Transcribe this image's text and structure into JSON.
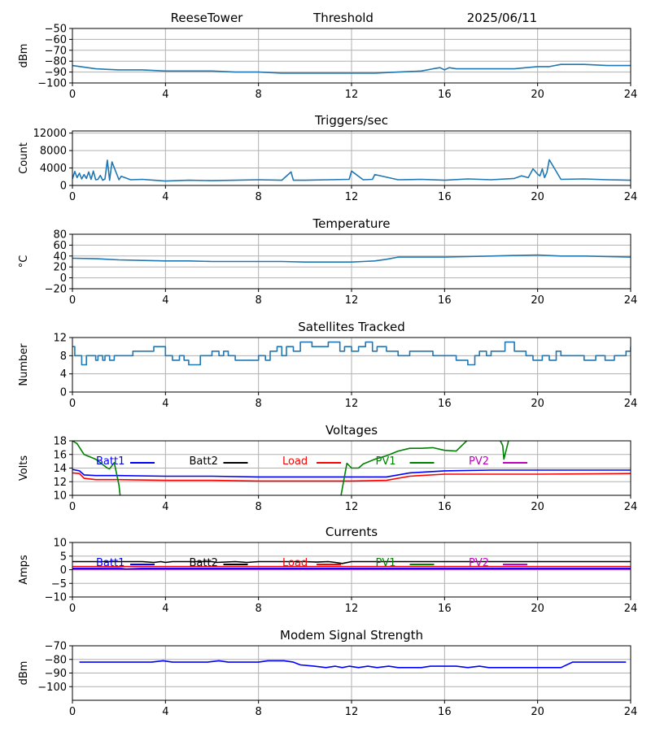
{
  "header": {
    "station": "ReeseTower",
    "label": "Threshold",
    "date": "2025/06/11"
  },
  "colors": {
    "series_default": "#1f77b4",
    "batt1": "#0000ff",
    "batt2": "#000000",
    "load": "#ff0000",
    "pv1": "#008000",
    "pv2": "#bf00bf",
    "grid": "#b0b0b0"
  },
  "chart_data": [
    {
      "type": "line",
      "title": "",
      "ylabel": "dBm",
      "xlim": [
        0,
        24
      ],
      "ylim": [
        -100,
        -50
      ],
      "xticks": [
        "0",
        "4",
        "8",
        "12",
        "16",
        "20",
        "24"
      ],
      "yticks": [
        "−50",
        "−60",
        "−70",
        "−80",
        "−90",
        "−100"
      ],
      "yticks_values": [
        -50,
        -60,
        -70,
        -80,
        -90,
        -100
      ],
      "series": [
        {
          "color": "#1f77b4",
          "x": [
            0,
            1,
            2,
            3,
            4,
            5,
            6,
            7,
            8,
            9,
            10,
            11,
            12,
            13,
            14,
            15,
            15.5,
            15.8,
            16,
            16.2,
            16.5,
            17,
            18,
            19,
            19.5,
            20,
            20.5,
            21,
            22,
            23,
            24
          ],
          "y": [
            -84,
            -87,
            -88,
            -88,
            -89,
            -89,
            -89,
            -90,
            -90,
            -91,
            -91,
            -91,
            -91,
            -91,
            -90,
            -89,
            -87,
            -86,
            -88,
            -86,
            -87,
            -87,
            -87,
            -87,
            -86,
            -85,
            -85,
            -83,
            -83,
            -84,
            -84
          ]
        }
      ]
    },
    {
      "type": "line",
      "title": "Triggers/sec",
      "ylabel": "Count",
      "xlim": [
        0,
        24
      ],
      "ylim": [
        0,
        12500
      ],
      "xticks": [
        "0",
        "4",
        "8",
        "12",
        "16",
        "20",
        "24"
      ],
      "yticks": [
        "0",
        "4000",
        "8000",
        "12000"
      ],
      "yticks_values": [
        0,
        4000,
        8000,
        12000
      ],
      "series": [
        {
          "color": "#1f77b4",
          "x": [
            0,
            0.1,
            0.2,
            0.3,
            0.4,
            0.5,
            0.6,
            0.7,
            0.8,
            0.9,
            1.0,
            1.1,
            1.2,
            1.3,
            1.4,
            1.5,
            1.6,
            1.7,
            2.0,
            2.1,
            2.5,
            3,
            3.5,
            4,
            5,
            6,
            7,
            8,
            9,
            9.4,
            9.5,
            10,
            11,
            11.9,
            12.0,
            12.5,
            12.9,
            13,
            14,
            15,
            16,
            17,
            18,
            19,
            19.3,
            19.6,
            19.8,
            20,
            20.1,
            20.2,
            20.3,
            20.4,
            20.5,
            21,
            22,
            23,
            24
          ],
          "y": [
            1500,
            3200,
            1800,
            2800,
            1500,
            2500,
            1600,
            3100,
            1400,
            3300,
            1300,
            1400,
            2300,
            1200,
            1500,
            5800,
            1200,
            5400,
            1300,
            2100,
            1300,
            1400,
            1200,
            1000,
            1200,
            1100,
            1200,
            1300,
            1200,
            3100,
            1200,
            1200,
            1300,
            1400,
            3300,
            1300,
            1400,
            2500,
            1300,
            1400,
            1200,
            1500,
            1300,
            1600,
            2200,
            1800,
            3800,
            2600,
            2200,
            3800,
            1800,
            3000,
            5900,
            1400,
            1500,
            1300,
            1200
          ]
        }
      ]
    },
    {
      "type": "line",
      "title": "Temperature",
      "ylabel": "°C",
      "xlim": [
        0,
        24
      ],
      "ylim": [
        -20,
        80
      ],
      "xticks": [
        "0",
        "4",
        "8",
        "12",
        "16",
        "20",
        "24"
      ],
      "yticks": [
        "80",
        "60",
        "40",
        "20",
        "0",
        "−20"
      ],
      "yticks_values": [
        80,
        60,
        40,
        20,
        0,
        -20
      ],
      "series": [
        {
          "color": "#1f77b4",
          "x": [
            0,
            1,
            2,
            3,
            4,
            5,
            6,
            7,
            8,
            9,
            10,
            11,
            12,
            12.5,
            13,
            13.5,
            14,
            15,
            16,
            17,
            18,
            19,
            20,
            21,
            22,
            23,
            24
          ],
          "y": [
            36,
            35,
            33,
            32,
            31,
            31,
            30,
            30,
            30,
            30,
            29,
            29,
            29,
            30,
            31,
            34,
            38,
            38,
            38,
            39,
            40,
            41,
            42,
            40,
            40,
            39,
            38
          ]
        }
      ]
    },
    {
      "type": "line",
      "title": "Satellites Tracked",
      "ylabel": "Number",
      "xlim": [
        0,
        24
      ],
      "ylim": [
        0,
        12
      ],
      "xticks": [
        "0",
        "4",
        "8",
        "12",
        "16",
        "20",
        "24"
      ],
      "yticks": [
        "0",
        "4",
        "8",
        "12"
      ],
      "yticks_values": [
        0,
        4,
        8,
        12
      ],
      "series": [
        {
          "color": "#1f77b4",
          "step": true,
          "x": [
            0,
            0.1,
            0.3,
            0.4,
            0.6,
            0.8,
            1.0,
            1.1,
            1.3,
            1.4,
            1.6,
            1.8,
            2.0,
            2.6,
            2.7,
            3.0,
            3.5,
            4.0,
            4.3,
            4.6,
            4.8,
            5.0,
            5.5,
            6.0,
            6.3,
            6.5,
            6.7,
            7.0,
            7.5,
            8.0,
            8.3,
            8.5,
            8.8,
            9.0,
            9.2,
            9.5,
            9.8,
            10.3,
            11.0,
            11.5,
            11.7,
            12.0,
            12.3,
            12.6,
            12.9,
            13.1,
            13.5,
            14.0,
            14.5,
            15.0,
            15.5,
            16.0,
            16.5,
            17.0,
            17.3,
            17.5,
            17.8,
            18.0,
            18.3,
            18.6,
            19.0,
            19.5,
            19.8,
            20.2,
            20.5,
            20.8,
            21.0,
            21.5,
            22.0,
            22.5,
            22.9,
            23.3,
            23.8,
            24
          ],
          "y": [
            10,
            8,
            8,
            6,
            8,
            8,
            7,
            8,
            7,
            8,
            7,
            8,
            8,
            9,
            9,
            9,
            10,
            8,
            7,
            8,
            7,
            6,
            8,
            9,
            8,
            9,
            8,
            7,
            7,
            8,
            7,
            9,
            10,
            8,
            10,
            9,
            11,
            10,
            11,
            9,
            10,
            9,
            10,
            11,
            9,
            10,
            9,
            8,
            9,
            9,
            8,
            8,
            7,
            6,
            8,
            9,
            8,
            9,
            9,
            11,
            9,
            8,
            7,
            8,
            7,
            9,
            8,
            8,
            7,
            8,
            7,
            8,
            9,
            10
          ]
        }
      ]
    },
    {
      "type": "line",
      "title": "Voltages",
      "ylabel": "Volts",
      "xlim": [
        0,
        24
      ],
      "ylim": [
        10,
        18
      ],
      "xticks": [
        "0",
        "4",
        "8",
        "12",
        "16",
        "20",
        "24"
      ],
      "yticks": [
        "10",
        "12",
        "14",
        "16",
        "18"
      ],
      "yticks_values": [
        10,
        12,
        14,
        16,
        18
      ],
      "legend": [
        "Batt1",
        "Batt2",
        "Load",
        "PV1",
        "PV2"
      ],
      "series": [
        {
          "name": "Batt1",
          "color": "#0000ff",
          "x": [
            0,
            0.3,
            0.5,
            1,
            2,
            4,
            6,
            8,
            10,
            12,
            13.5,
            14.5,
            16,
            18,
            20,
            24
          ],
          "y": [
            13.8,
            13.6,
            13.0,
            12.9,
            12.9,
            12.8,
            12.8,
            12.7,
            12.7,
            12.7,
            12.7,
            13.3,
            13.6,
            13.7,
            13.7,
            13.7
          ]
        },
        {
          "name": "Load",
          "color": "#ff0000",
          "x": [
            0,
            0.3,
            0.5,
            1,
            2,
            4,
            6,
            8,
            10,
            12,
            13.5,
            14.5,
            16,
            18,
            20,
            24
          ],
          "y": [
            13.3,
            13.2,
            12.5,
            12.3,
            12.3,
            12.2,
            12.2,
            12.1,
            12.1,
            12.1,
            12.2,
            12.8,
            13.1,
            13.1,
            13.1,
            13.2
          ]
        },
        {
          "name": "PV1",
          "color": "#008000",
          "x": [
            0,
            0.2,
            0.5,
            1.0,
            1.5,
            1.6,
            1.8,
            2.0,
            2.05
          ],
          "y": [
            18.0,
            17.6,
            16.0,
            15.3,
            14.0,
            13.9,
            14.8,
            11.5,
            10.0
          ]
        },
        {
          "name": "PV1",
          "color": "#008000",
          "x": [
            11.55,
            11.8,
            12.0,
            12.3,
            12.5,
            13.0,
            13.5,
            14.0,
            14.5,
            15.0,
            15.5,
            16.0,
            16.5,
            16.95
          ],
          "y": [
            10.0,
            14.7,
            14.0,
            14.0,
            14.6,
            15.3,
            15.8,
            16.5,
            16.9,
            16.9,
            17.0,
            16.6,
            16.5,
            18.0
          ]
        },
        {
          "name": "PV1",
          "color": "#008000",
          "x": [
            18.4,
            18.5,
            18.55,
            18.75
          ],
          "y": [
            18.0,
            17.3,
            15.3,
            18.0
          ]
        }
      ]
    },
    {
      "type": "line",
      "title": "Currents",
      "ylabel": "Amps",
      "xlim": [
        0,
        24
      ],
      "ylim": [
        -10,
        10
      ],
      "xticks": [
        "0",
        "4",
        "8",
        "12",
        "16",
        "20",
        "24"
      ],
      "yticks": [
        "10",
        "5",
        "0",
        "−5",
        "−10"
      ],
      "yticks_values": [
        10,
        5,
        0,
        -5,
        -10
      ],
      "legend": [
        "Batt1",
        "Batt2",
        "Load",
        "PV1",
        "PV2"
      ],
      "series": [
        {
          "name": "Batt2",
          "color": "#000000",
          "x": [
            0,
            2,
            3,
            3.5,
            3.8,
            4,
            4.3,
            5,
            6,
            6.2,
            7,
            7.5,
            8,
            9,
            10,
            10.5,
            11,
            11.3,
            11.6,
            12,
            13,
            14,
            16,
            18,
            20,
            22,
            24
          ],
          "y": [
            3,
            3,
            3,
            2.7,
            3,
            2.7,
            3,
            3,
            3,
            2.7,
            3,
            2.7,
            3,
            3,
            3,
            2.8,
            3,
            2.7,
            2.3,
            3,
            3,
            3,
            3,
            3,
            3,
            3,
            3
          ]
        },
        {
          "name": "Load",
          "color": "#ff0000",
          "x": [
            0,
            24
          ],
          "y": [
            1.2,
            1.2
          ]
        },
        {
          "name": "PV2",
          "color": "#bf00bf",
          "x": [
            0,
            24
          ],
          "y": [
            0.2,
            0.2
          ]
        },
        {
          "name": "Batt1",
          "color": "#0000ff",
          "x": [
            0,
            1,
            2,
            2.3,
            3,
            24
          ],
          "y": [
            0.5,
            0.5,
            0.6,
            0.3,
            0.5,
            0.5
          ]
        }
      ]
    },
    {
      "type": "line",
      "title": "Modem Signal Strength",
      "ylabel": "dBm",
      "xlim": [
        0,
        24
      ],
      "ylim": [
        -110,
        -70
      ],
      "xticks": [
        "0",
        "4",
        "8",
        "12",
        "16",
        "20",
        "24"
      ],
      "yticks": [
        "−70",
        "−80",
        "−90",
        "−100"
      ],
      "yticks_values": [
        -70,
        -80,
        -90,
        -100
      ],
      "series": [
        {
          "color": "#0000ff",
          "x": [
            0.3,
            3.4,
            3.9,
            4.3,
            5.8,
            6.3,
            6.7,
            8.0,
            8.4,
            9.1,
            9.5,
            9.8,
            10.4,
            10.9,
            11.3,
            11.6,
            11.9,
            12.3,
            12.7,
            13.1,
            13.6,
            14.0,
            15.0,
            15.4,
            16.5,
            17.0,
            17.5,
            17.9,
            20.5,
            21.0,
            21.5,
            23.8
          ],
          "y": [
            -82,
            -82,
            -81,
            -82,
            -82,
            -81,
            -82,
            -82,
            -81,
            -81,
            -82,
            -84,
            -85,
            -86,
            -85,
            -86,
            -85,
            -86,
            -85,
            -86,
            -85,
            -86,
            -86,
            -85,
            -85,
            -86,
            -85,
            -86,
            -86,
            -86,
            -82,
            -82
          ]
        }
      ]
    }
  ]
}
